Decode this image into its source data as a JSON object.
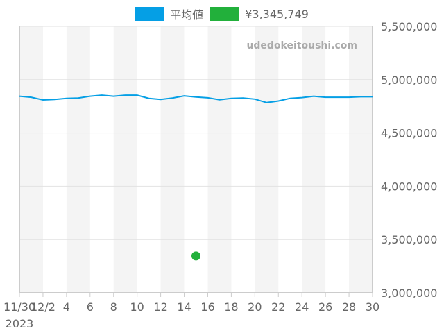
{
  "chart_data": {
    "type": "line",
    "title": "",
    "watermark": "udedokeitoushi.com",
    "legend": [
      {
        "label": "平均値",
        "color": "#059fe5"
      },
      {
        "label": "¥3,345,749",
        "color": "#22b03b"
      }
    ],
    "xlabel": "",
    "ylabel": "",
    "ylim": [
      3000000,
      5500000
    ],
    "y_ticks": [
      "3,000,000",
      "3,500,000",
      "4,000,000",
      "4,500,000",
      "5,000,000",
      "5,500,000"
    ],
    "x_tick_labels": [
      "11/30",
      "12/2",
      "4",
      "6",
      "8",
      "10",
      "12",
      "14",
      "16",
      "18",
      "20",
      "22",
      "24",
      "26",
      "28",
      "30"
    ],
    "x_year_label": "2023",
    "x": [
      "11/30",
      "12/1",
      "12/2",
      "12/3",
      "12/4",
      "12/5",
      "12/6",
      "12/7",
      "12/8",
      "12/9",
      "12/10",
      "12/11",
      "12/12",
      "12/13",
      "12/14",
      "12/15",
      "12/16",
      "12/17",
      "12/18",
      "12/19",
      "12/20",
      "12/21",
      "12/22",
      "12/23",
      "12/24",
      "12/25",
      "12/26",
      "12/27",
      "12/28",
      "12/29",
      "12/30"
    ],
    "series": [
      {
        "name": "平均値",
        "color": "#059fe5",
        "values": [
          4845000,
          4835000,
          4810000,
          4815000,
          4825000,
          4828000,
          4845000,
          4855000,
          4845000,
          4855000,
          4855000,
          4825000,
          4815000,
          4828000,
          4848000,
          4838000,
          4830000,
          4812000,
          4825000,
          4828000,
          4818000,
          4785000,
          4800000,
          4825000,
          4832000,
          4845000,
          4835000,
          4835000,
          4835000,
          4840000,
          4840000
        ]
      },
      {
        "name": "¥3,345,749",
        "color": "#22b03b",
        "type": "scatter",
        "points": [
          {
            "x": "12/15",
            "y": 3345749
          }
        ]
      }
    ],
    "grid": true,
    "legend_position": "top"
  }
}
